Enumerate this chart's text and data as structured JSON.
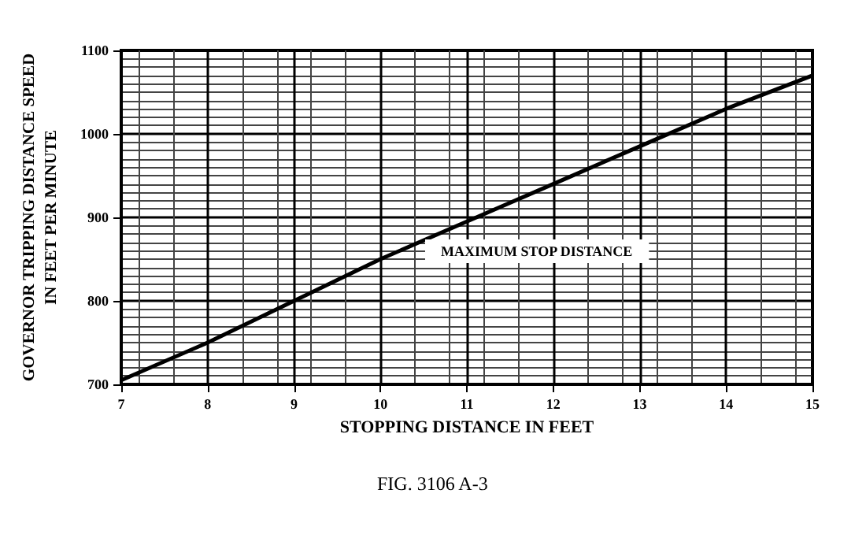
{
  "chart_data": {
    "type": "line",
    "xlabel": "STOPPING DISTANCE IN FEET",
    "ylabel": "GOVERNOR TRIPPING DISTANCE SPEED\nIN FEET PER MINUTE",
    "annotations": [
      "MAXIMUM STOP DISTANCE",
      "FIG. 3106 A-3"
    ],
    "x": [
      7,
      8,
      9,
      10,
      11,
      12,
      13,
      14,
      15
    ],
    "series": [
      {
        "color": "#000000",
        "values": [
          705,
          750,
          800,
          850,
          895,
          940,
          985,
          1030,
          1070
        ]
      }
    ],
    "xlim": [
      7,
      15
    ],
    "xticks": [
      7,
      8,
      9,
      10,
      11,
      12,
      13,
      14,
      15
    ],
    "ylim": [
      700,
      1100
    ],
    "yticks": [
      700,
      800,
      900,
      1000,
      1100
    ],
    "grid": true,
    "marker": "none",
    "line_style": "solid"
  }
}
